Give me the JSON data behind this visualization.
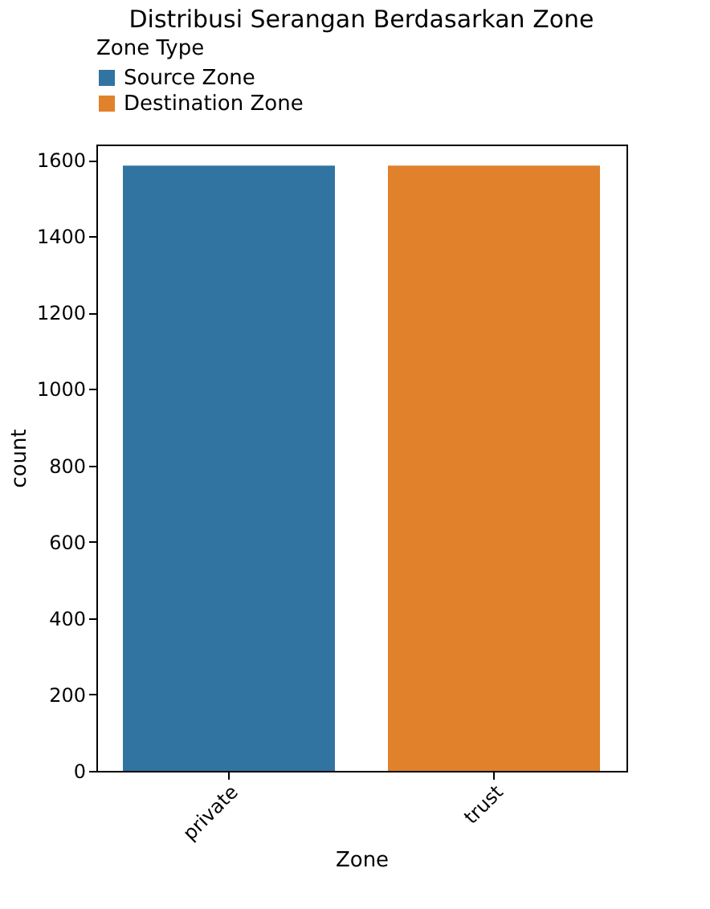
{
  "chart_data": {
    "type": "bar",
    "title": "Distribusi Serangan Berdasarkan Zone",
    "xlabel": "Zone",
    "ylabel": "count",
    "legend_title": "Zone Type",
    "categories": [
      "private",
      "trust"
    ],
    "series": [
      {
        "name": "Source Zone",
        "color": "#3274a1",
        "values": [
          1585,
          null
        ]
      },
      {
        "name": "Destination Zone",
        "color": "#e1812c",
        "values": [
          null,
          1585
        ]
      }
    ],
    "ylim": [
      0,
      1640
    ],
    "yticks": [
      0,
      200,
      400,
      600,
      800,
      1000,
      1200,
      1400,
      1600
    ],
    "grid": false,
    "legend": "top"
  }
}
